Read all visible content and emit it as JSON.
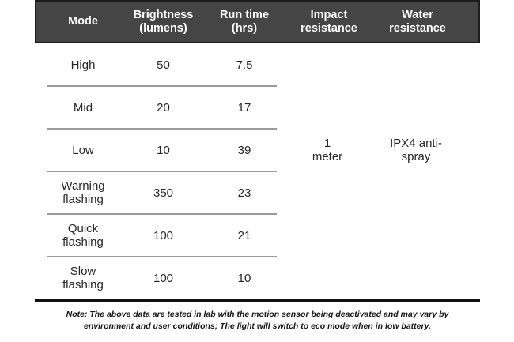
{
  "chart_data": {
    "type": "table",
    "title": "",
    "columns": [
      "Mode",
      "Brightness (lumens)",
      "Run time (hrs)",
      "Impact resistance",
      "Water resistance"
    ],
    "rows": [
      {
        "mode": "High",
        "brightness_lumens": 50,
        "run_time_hrs": 7.5
      },
      {
        "mode": "Mid",
        "brightness_lumens": 20,
        "run_time_hrs": 17
      },
      {
        "mode": "Low",
        "brightness_lumens": 10,
        "run_time_hrs": 39
      },
      {
        "mode": "Warning flashing",
        "brightness_lumens": 350,
        "run_time_hrs": 23
      },
      {
        "mode": "Quick flashing",
        "brightness_lumens": 100,
        "run_time_hrs": 21
      },
      {
        "mode": "Slow flashing",
        "brightness_lumens": 100,
        "run_time_hrs": 10
      }
    ],
    "impact_resistance_all_modes": "1 meter",
    "water_resistance_all_modes": "IPX4 anti-spray",
    "note": "Note: The above data are tested in lab with the motion sensor being deactivated and may vary by\nenvironment and user conditions; The light will switch to eco mode when in low battery."
  },
  "colors": {
    "header_bg": "#454545",
    "header_border": "#1c1c1c",
    "header_text": "#ffffff",
    "body_text": "#262626",
    "row_separator": "#9b9b9b",
    "bottom_rule": "#101010",
    "background": "#ffffff"
  }
}
